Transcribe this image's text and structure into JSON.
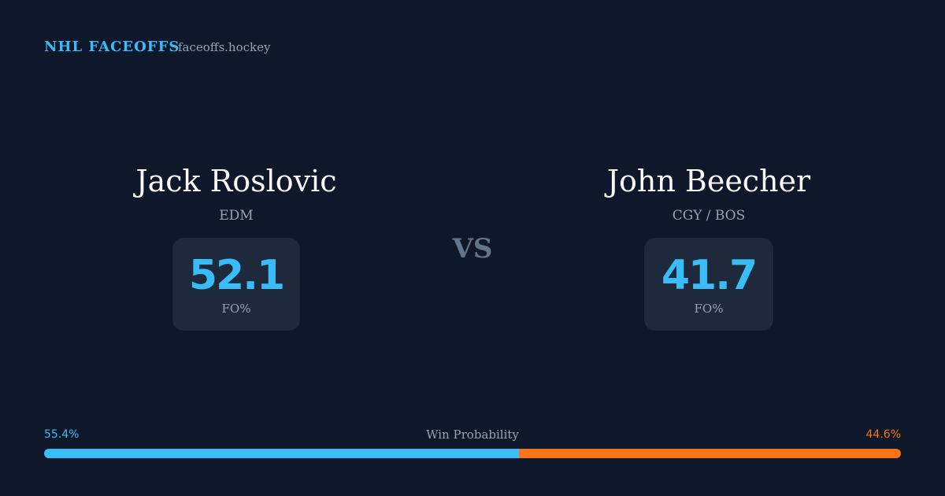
{
  "header": {
    "brand": "NHL FACEOFFS",
    "site": "faceoffs.hockey"
  },
  "players": [
    {
      "name": "Jack Roslovic",
      "team": "EDM",
      "fo_value": 52.1,
      "fo_label": "FO%"
    },
    {
      "name": "John Beecher",
      "team": "CGY / BOS",
      "fo_value": 41.7,
      "fo_label": "FO%"
    }
  ],
  "vs": "VS",
  "win_probability": {
    "label": "Win Probability",
    "values": [
      55.4,
      44.6
    ],
    "value_labels": [
      "55.4%",
      "44.6%"
    ],
    "colors": [
      "#38bdf8",
      "#f97316"
    ]
  }
}
